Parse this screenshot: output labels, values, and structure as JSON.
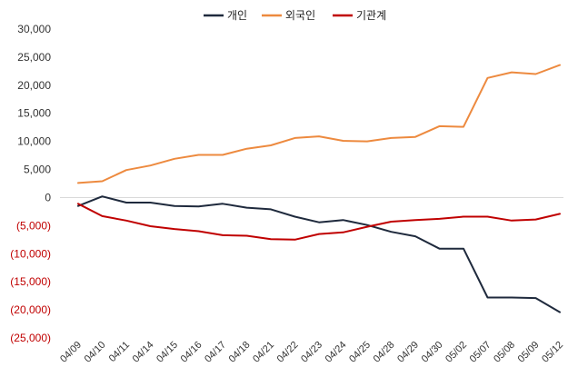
{
  "chart_data": {
    "type": "line",
    "title": "",
    "xlabel": "",
    "ylabel": "",
    "ylim": [
      -25000,
      30000
    ],
    "ytick_step": 5000,
    "y_tick_labels": [
      "30,000",
      "25,000",
      "20,000",
      "15,000",
      "10,000",
      "5,000",
      "0",
      "(5,000)",
      "(10,000)",
      "(15,000)",
      "(20,000)",
      "(25,000)"
    ],
    "negative_tick_color": "#c00000",
    "positive_tick_color": "#333333",
    "grid": false,
    "legend_position": "top-center",
    "categories": [
      "04/09",
      "04/10",
      "04/11",
      "04/14",
      "04/15",
      "04/16",
      "04/17",
      "04/18",
      "04/21",
      "04/22",
      "04/23",
      "04/24",
      "04/25",
      "04/28",
      "04/29",
      "04/30",
      "05/02",
      "05/07",
      "05/08",
      "05/09",
      "05/12"
    ],
    "series": [
      {
        "name": "개인",
        "color": "#1f2a3d",
        "values": [
          -1500,
          200,
          -900,
          -900,
          -1500,
          -1600,
          -1100,
          -1800,
          -2100,
          -3400,
          -4400,
          -4000,
          -4900,
          -6100,
          -6900,
          -9100,
          -9100,
          -17800,
          -17800,
          -17900,
          -20400
        ]
      },
      {
        "name": "외국인",
        "color": "#ed8a3f",
        "values": [
          2600,
          2900,
          4900,
          5700,
          6900,
          7600,
          7600,
          8700,
          9300,
          10600,
          10900,
          10100,
          10000,
          10600,
          10800,
          12700,
          12600,
          21300,
          22300,
          22000,
          23600
        ]
      },
      {
        "name": "기관계",
        "color": "#c00000",
        "values": [
          -1100,
          -3300,
          -4100,
          -5100,
          -5600,
          -6000,
          -6700,
          -6800,
          -7400,
          -7500,
          -6500,
          -6200,
          -5200,
          -4300,
          -4000,
          -3800,
          -3400,
          -3400,
          -4100,
          -3900,
          -2900
        ]
      }
    ]
  }
}
